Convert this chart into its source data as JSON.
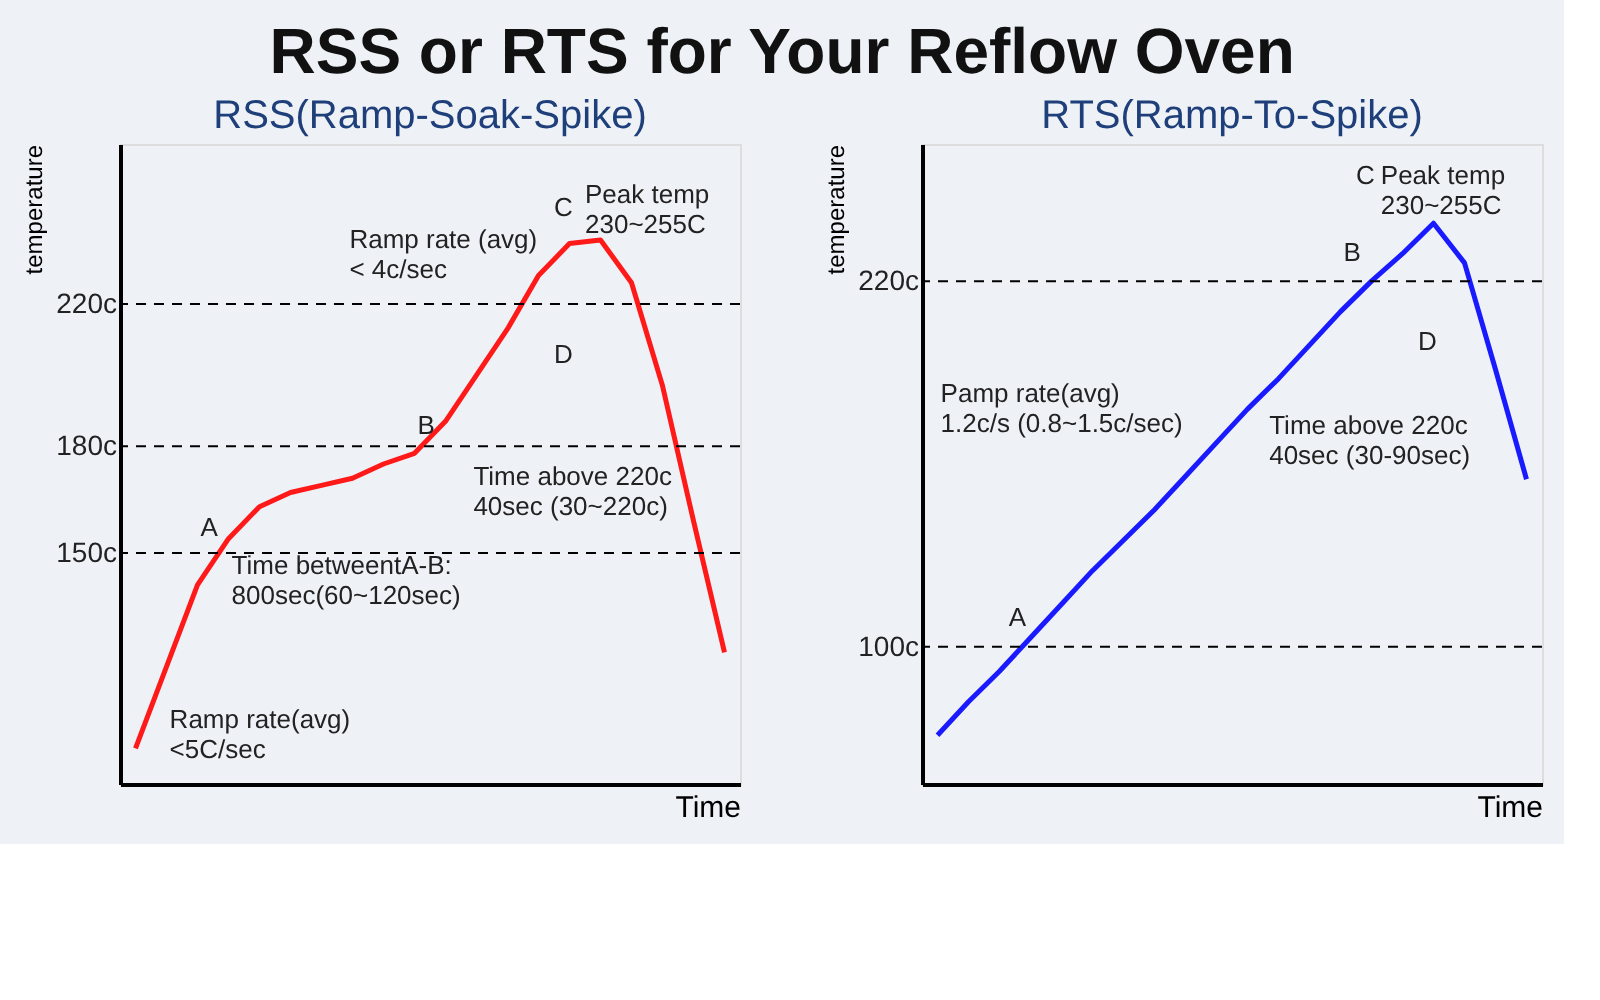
{
  "chart_data": [
    {
      "type": "line",
      "title": "RSS or RTS for Your Reflow Oven",
      "subtitle": "RSS(Ramp-Soak-Spike)",
      "xlabel": "Time",
      "ylabel": "temperature",
      "tick_labels": "y",
      "grid": false,
      "marker": "none",
      "line_style": "solid",
      "categories": [
        null,
        null,
        null,
        null,
        null,
        null,
        null,
        null,
        null,
        null,
        null,
        null,
        null,
        null,
        null,
        null,
        null,
        null,
        null,
        null
      ],
      "series": [
        {
          "color": "#ff1a1a",
          "values": [
            95,
            118,
            141,
            154,
            163,
            167,
            169,
            171,
            175,
            178,
            187,
            200,
            213,
            228,
            237,
            238,
            226,
            197,
            159,
            122
          ]
        }
      ],
      "ylim": [
        85,
        265
      ],
      "yticks": [
        {
          "value": 150,
          "label": "150c"
        },
        {
          "value": 180,
          "label": "180c"
        },
        {
          "value": 220,
          "label": "220c"
        }
      ],
      "ref_lines": [
        {
          "axis": "y",
          "value": 150,
          "color": "#000000",
          "line_style": "dashed"
        },
        {
          "axis": "y",
          "value": 180,
          "color": "#000000",
          "line_style": "dashed"
        },
        {
          "axis": "y",
          "value": 220,
          "color": "#000000",
          "line_style": "dashed"
        }
      ],
      "annotations": [
        "A",
        "B",
        "C",
        "D",
        "Ramp rate (avg)\n< 4c/sec",
        "Peak temp\n230~255C",
        "Time above 220c\n40sec (30~220c)",
        "Time betweentA-B:\n800sec(60~120sec)",
        "Ramp rate(avg)\n<5C/sec"
      ]
    },
    {
      "type": "line",
      "subtitle": "RTS(Ramp-To-Spike)",
      "xlabel": "Time",
      "ylabel": "temperature",
      "tick_labels": "y",
      "grid": false,
      "marker": "none",
      "line_style": "solid",
      "categories": [
        null,
        null,
        null,
        null,
        null,
        null,
        null,
        null,
        null,
        null,
        null,
        null,
        null,
        null,
        null,
        null,
        null,
        null,
        null,
        null
      ],
      "series": [
        {
          "color": "#1a1aff",
          "values": [
            71,
            82,
            92,
            103,
            114,
            125,
            135,
            145,
            156,
            167,
            178,
            188,
            199,
            210,
            220,
            229,
            239,
            226,
            191,
            155
          ]
        }
      ],
      "ylim": [
        55,
        265
      ],
      "yticks": [
        {
          "value": 100,
          "label": "100c"
        },
        {
          "value": 220,
          "label": "220c"
        }
      ],
      "ref_lines": [
        {
          "axis": "y",
          "value": 100,
          "color": "#000000",
          "line_style": "dashed"
        },
        {
          "axis": "y",
          "value": 220,
          "color": "#000000",
          "line_style": "dashed"
        }
      ],
      "annotations": [
        "A",
        "B",
        "C",
        "D",
        "Peak temp\n230~255C",
        "Pamp rate(avg)\n1.2c/s (0.8~1.5c/sec)",
        "Time above 220c\n40sec (30-90sec)"
      ]
    }
  ]
}
